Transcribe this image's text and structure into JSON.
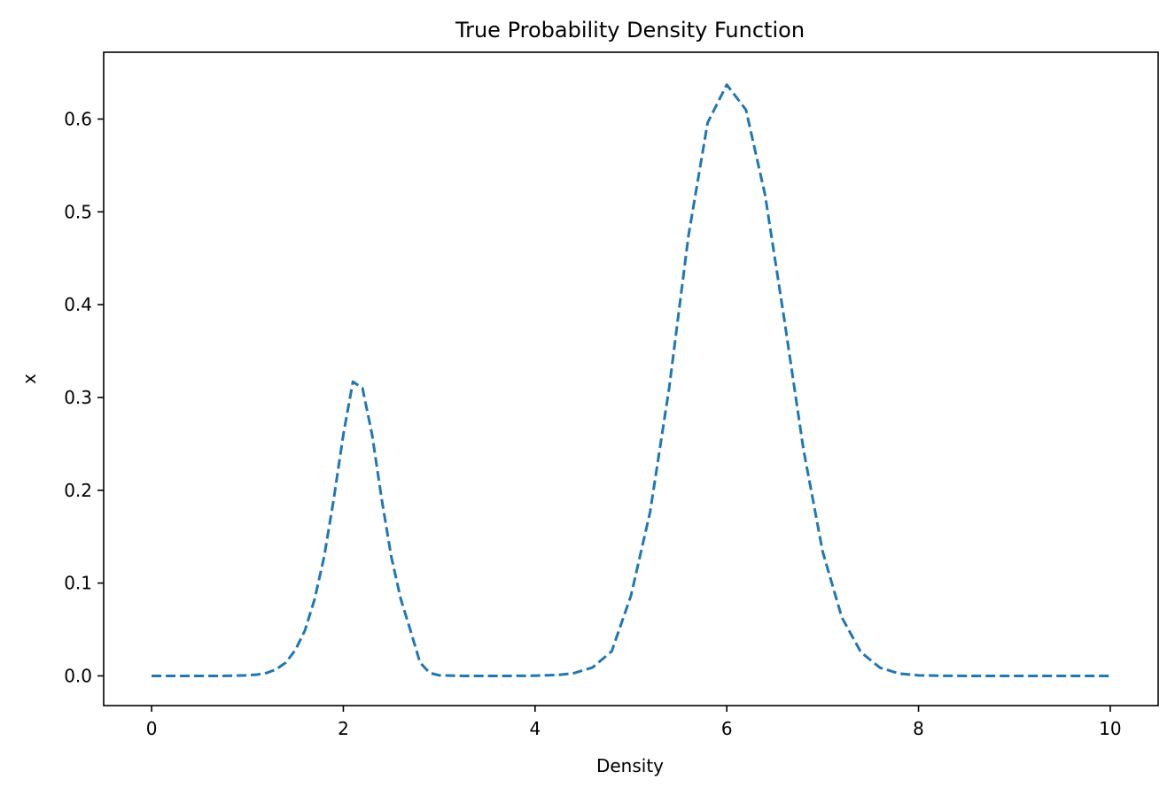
{
  "chart_data": {
    "type": "line",
    "title": "True Probability Density Function",
    "xlabel": "Density",
    "ylabel": "x",
    "xlim": [
      -0.5,
      10.5
    ],
    "ylim": [
      -0.032,
      0.672
    ],
    "xticks": [
      0,
      2,
      4,
      6,
      8,
      10
    ],
    "xtick_labels": [
      "0",
      "2",
      "4",
      "6",
      "8",
      "10"
    ],
    "yticks": [
      0.0,
      0.1,
      0.2,
      0.3,
      0.4,
      0.5,
      0.6
    ],
    "ytick_labels": [
      "0.0",
      "0.1",
      "0.2",
      "0.3",
      "0.4",
      "0.5",
      "0.6"
    ],
    "grid": false,
    "series": [
      {
        "line_style": "dashed",
        "color": "#1f77b4",
        "x": [
          0.0,
          0.25,
          0.5,
          0.75,
          1.0,
          1.1,
          1.2,
          1.3,
          1.4,
          1.5,
          1.6,
          1.7,
          1.8,
          1.9,
          2.0,
          2.1,
          2.2,
          2.3,
          2.4,
          2.5,
          2.6,
          2.7,
          2.8,
          2.9,
          3.0,
          3.25,
          3.5,
          3.75,
          4.0,
          4.25,
          4.4,
          4.6,
          4.8,
          5.0,
          5.2,
          5.4,
          5.6,
          5.8,
          6.0,
          6.2,
          6.4,
          6.6,
          6.8,
          7.0,
          7.2,
          7.4,
          7.6,
          7.8,
          8.0,
          8.25,
          8.5,
          8.75,
          9.0,
          9.25,
          9.5,
          9.75,
          10.0
        ],
        "y": [
          0.0,
          0.0,
          0.0,
          0.0,
          0.0006,
          0.0014,
          0.0032,
          0.0071,
          0.0144,
          0.028,
          0.0491,
          0.0825,
          0.1285,
          0.1905,
          0.26,
          0.317,
          0.31,
          0.26,
          0.1905,
          0.1285,
          0.0825,
          0.0491,
          0.0144,
          0.0032,
          0.0006,
          0.0,
          0.0,
          0.0,
          0.0002,
          0.0011,
          0.0028,
          0.0091,
          0.0266,
          0.0863,
          0.1765,
          0.311,
          0.474,
          0.596,
          0.637,
          0.61,
          0.518,
          0.384,
          0.244,
          0.134,
          0.063,
          0.0254,
          0.0087,
          0.0025,
          0.0006,
          0.0001,
          0.0,
          0.0,
          0.0,
          0.0,
          0.0,
          0.0,
          0.0
        ]
      }
    ]
  }
}
